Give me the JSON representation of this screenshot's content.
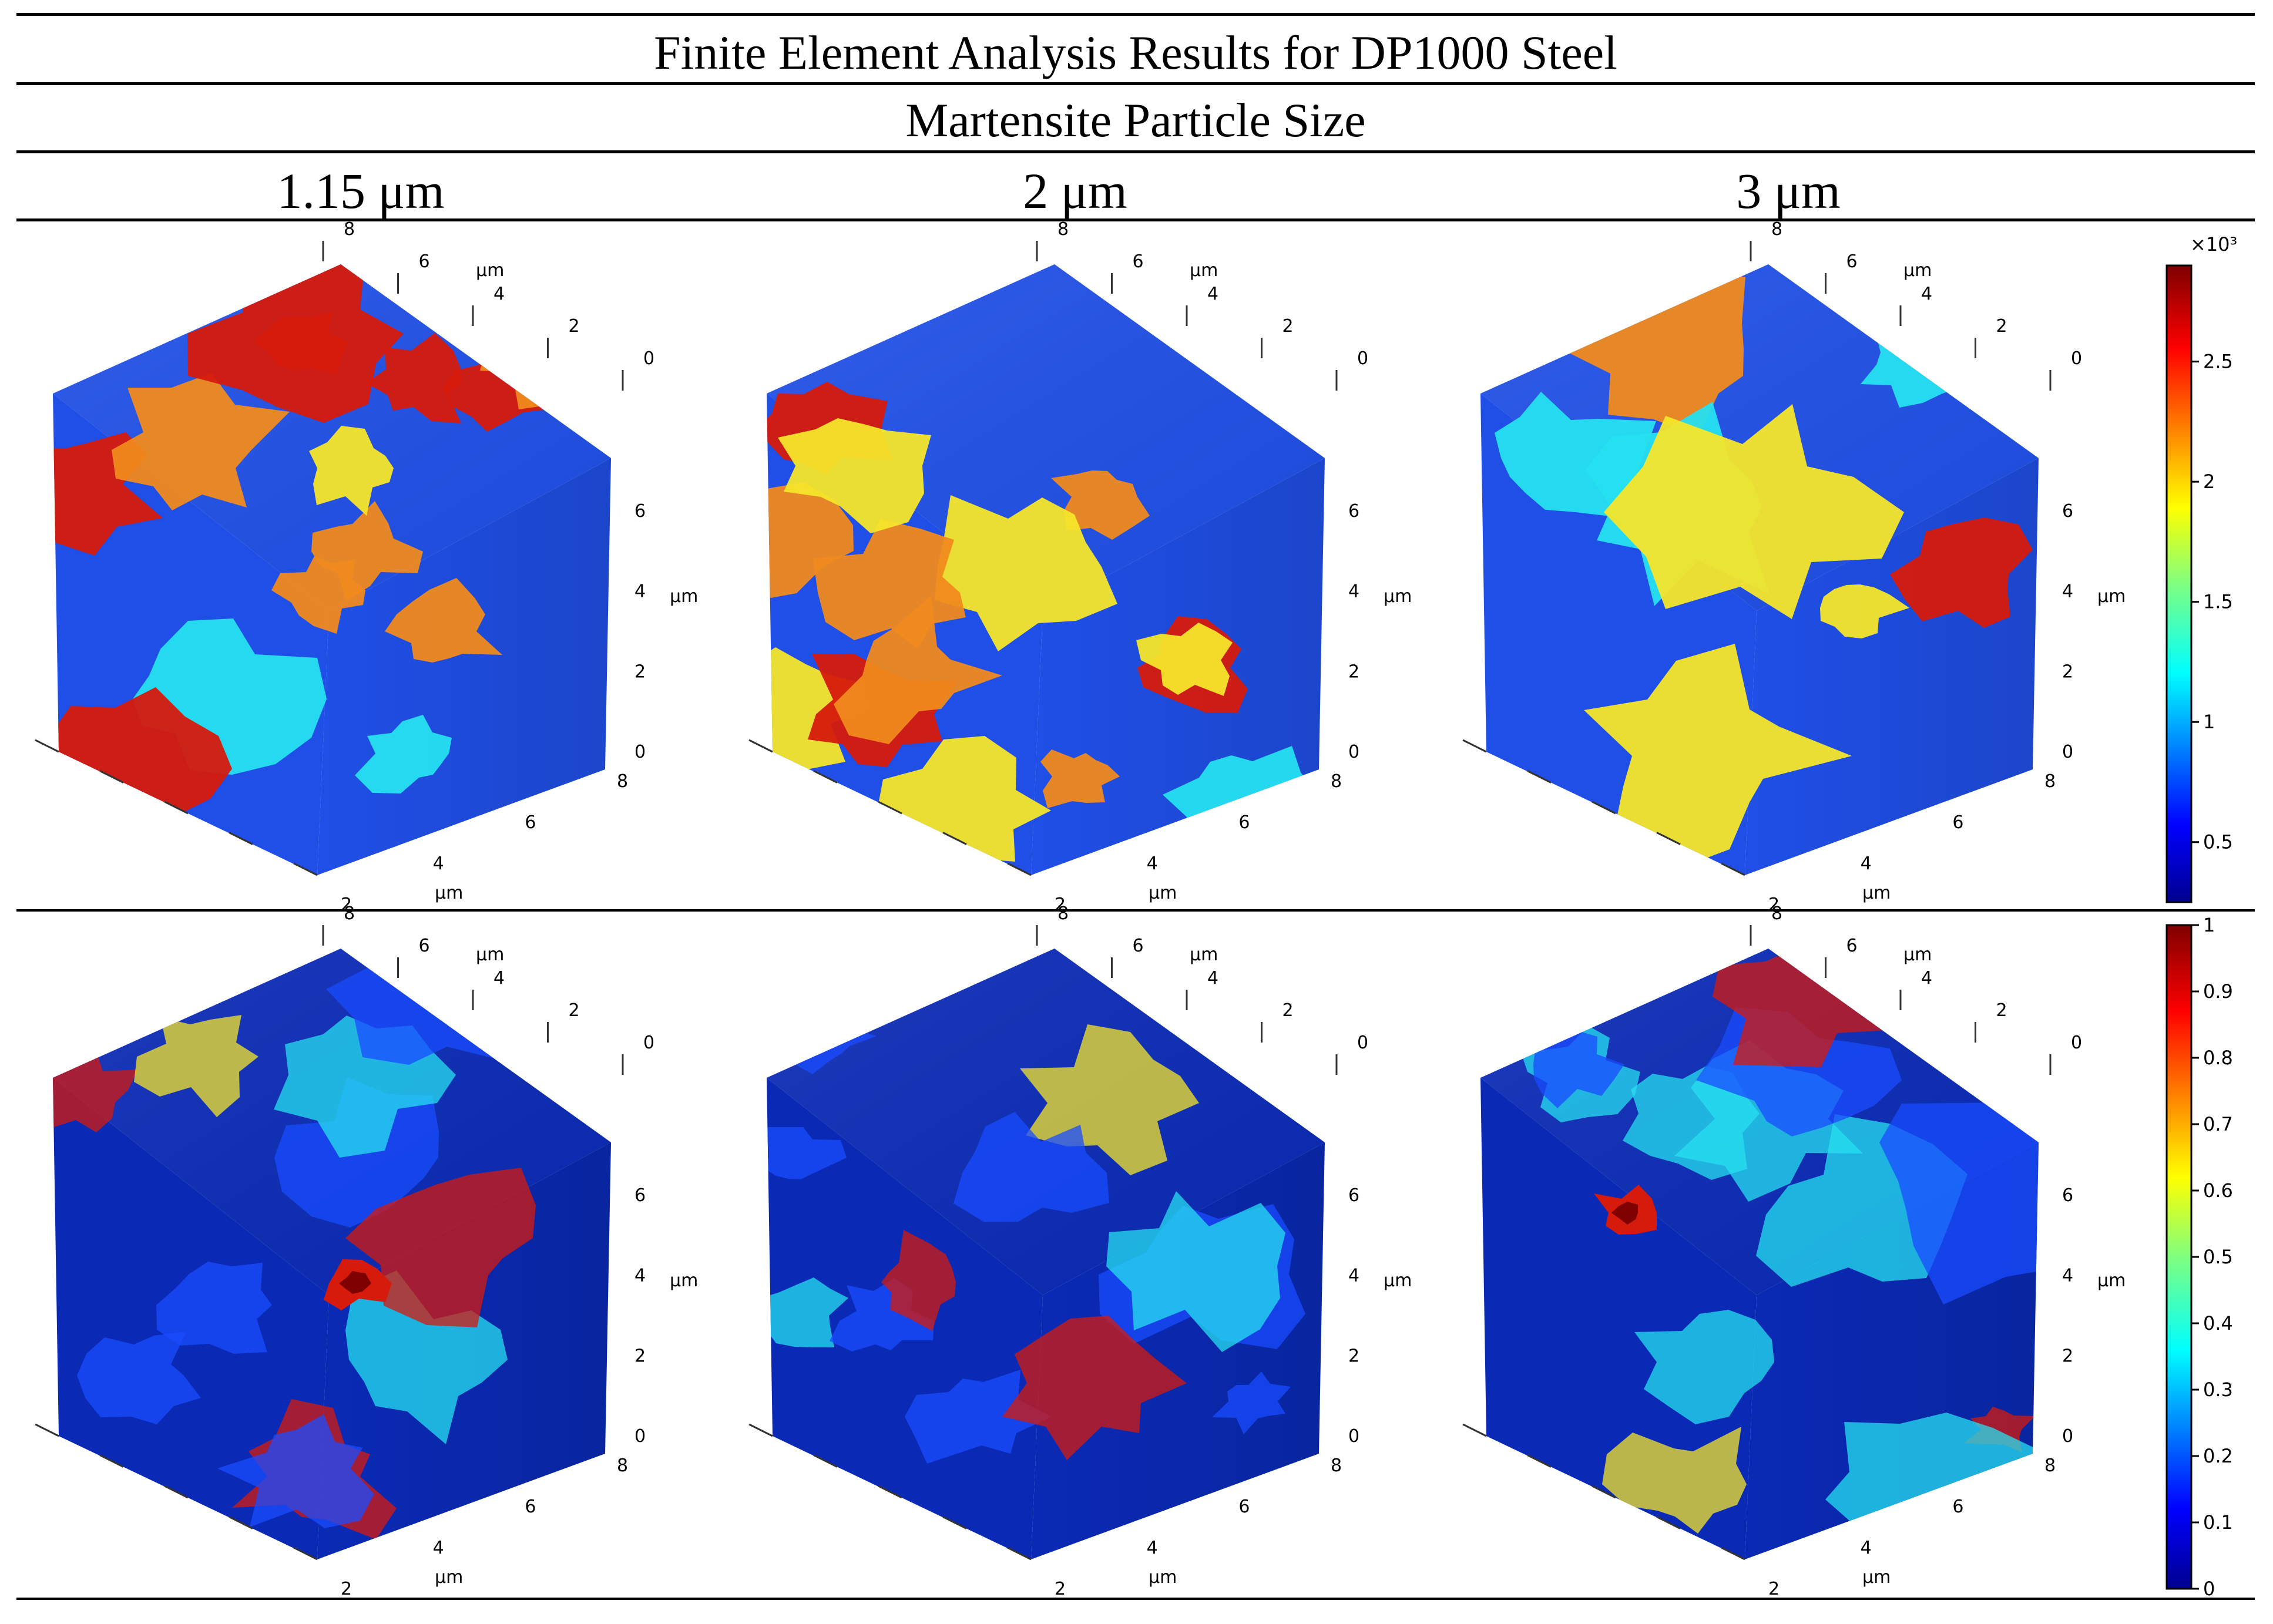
{
  "header": {
    "title": "Finite Element Analysis Results for DP1000 Steel",
    "subtitle": "Martensite Particle Size",
    "columns": [
      "1.15 μm",
      "2 μm",
      "3 μm"
    ]
  },
  "axes": {
    "unit": "μm",
    "back_ticks": [
      "8",
      "6",
      "4",
      "2",
      "0"
    ],
    "side_ticks": [
      "6",
      "4",
      "2",
      "0"
    ],
    "front_ticks": [
      "8",
      "6",
      "4",
      "2"
    ]
  },
  "colorbars": [
    {
      "multiplier": "×10³",
      "ticks": [
        "2.5",
        "2",
        "1.5",
        "1",
        "0.5"
      ],
      "tick_values": [
        2.5,
        2,
        1.5,
        1,
        0.5
      ],
      "range": [
        0.25,
        2.9
      ]
    },
    {
      "multiplier": "",
      "ticks": [
        "1",
        "0.9",
        "0.8",
        "0.7",
        "0.6",
        "0.5",
        "0.4",
        "0.3",
        "0.2",
        "0.1",
        "0"
      ],
      "tick_values": [
        1,
        0.9,
        0.8,
        0.7,
        0.6,
        0.5,
        0.4,
        0.3,
        0.2,
        0.1,
        0
      ],
      "range": [
        0,
        1
      ]
    }
  ],
  "colors": {
    "jet_dark_blue": "#00008f",
    "jet_blue": "#1a4cff",
    "jet_cyan": "#25e0f0",
    "jet_yellow": "#f5e62a",
    "jet_orange": "#f08a1e",
    "jet_red": "#d61a0c",
    "jet_dark_red": "#7f0000",
    "row1_matrix": "#1f4fe6",
    "row2_matrix": "#0a2ab5"
  }
}
